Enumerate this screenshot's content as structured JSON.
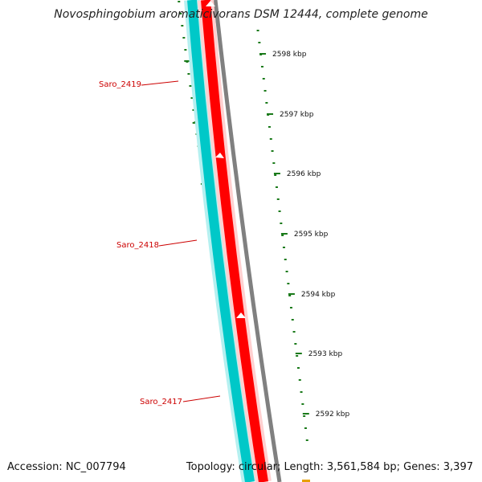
{
  "title": "Novosphingobium aromaticivorans DSM 12444, complete genome",
  "footer": {
    "accession": "Accession: NC_007794",
    "summary": "Topology: circular; Length: 3,561,584 bp; Genes: 3,397"
  },
  "colors": {
    "gene_label": "#cc0000",
    "tick": "#1a7a1a",
    "strand_forward": "#ff0000",
    "strand_reverse": "#00c8c8",
    "backbone": "#808080"
  },
  "genes": [
    {
      "name": "Saro_2419"
    },
    {
      "name": "Saro_2418"
    },
    {
      "name": "Saro_2417"
    }
  ],
  "kbp_ticks": [
    {
      "label": "2598 kbp"
    },
    {
      "label": "2597 kbp"
    },
    {
      "label": "2596 kbp"
    },
    {
      "label": "2595 kbp"
    },
    {
      "label": "2594 kbp"
    },
    {
      "label": "2593 kbp"
    },
    {
      "label": "2592 kbp"
    }
  ]
}
